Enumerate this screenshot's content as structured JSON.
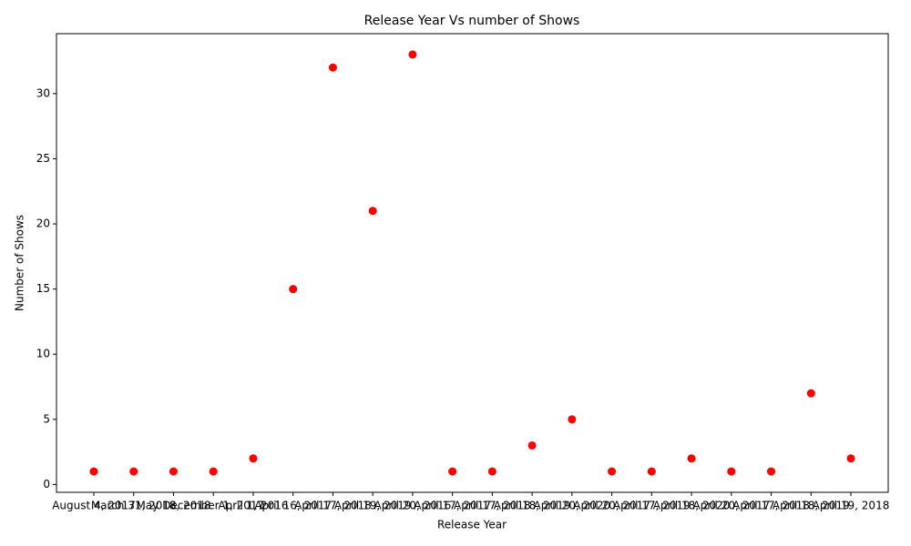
{
  "chart_data": {
    "type": "scatter",
    "title": "Release Year Vs number of Shows",
    "x_label": "Release Year",
    "y_label": "Number of Shows",
    "categories": [
      "August 4, 2017",
      "March 31, 2018",
      "May 18, 2018",
      "December 1, 2017",
      "April 1, 2016",
      "April 16, 2017",
      "April 17, 2018",
      "April 19, 2019",
      "April 20, 2016",
      "April 17, 2017",
      "April 17, 2018",
      "April 18, 2019",
      "April 20, 2020",
      "April 20, 2017",
      "April 17, 2019",
      "April 18, 2020",
      "April 20, 2017",
      "April 17, 2018",
      "April 18, 2019",
      "April 19, 2018"
    ],
    "values": [
      1,
      1,
      1,
      1,
      2,
      15,
      32,
      21,
      33,
      1,
      1,
      3,
      5,
      1,
      1,
      2,
      1,
      1,
      7,
      2
    ],
    "color": "#ff0000",
    "ylim": [
      -0.6,
      34.6
    ],
    "yticks": [
      0,
      5,
      10,
      15,
      20,
      25,
      30
    ],
    "grid": false
  }
}
